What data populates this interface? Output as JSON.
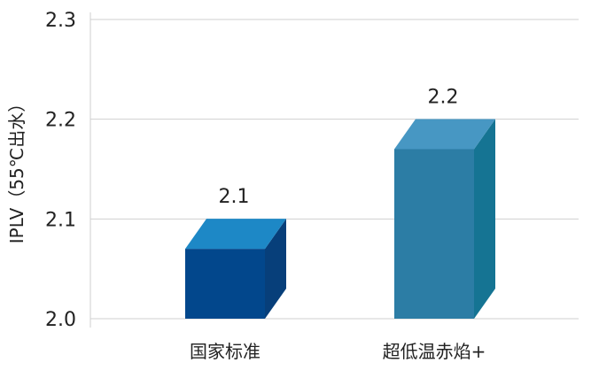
{
  "chart_data": {
    "type": "bar",
    "title": "",
    "xlabel": "",
    "ylabel": "IPLV（55℃出水）",
    "ylim": [
      2.0,
      2.3
    ],
    "yticks": [
      "2.0",
      "2.1",
      "2.2",
      "2.3"
    ],
    "grid": true,
    "categories": [
      "国家标准",
      "超低温赤焰+"
    ],
    "values": [
      2.07,
      2.17
    ],
    "data_labels": [
      "2.1",
      "2.2"
    ],
    "colors": [
      {
        "front": "#02478c",
        "top": "#1d88c6",
        "side": "#073f7a"
      },
      {
        "front": "#2c7da5",
        "top": "#4797c3",
        "side": "#157493"
      }
    ]
  }
}
